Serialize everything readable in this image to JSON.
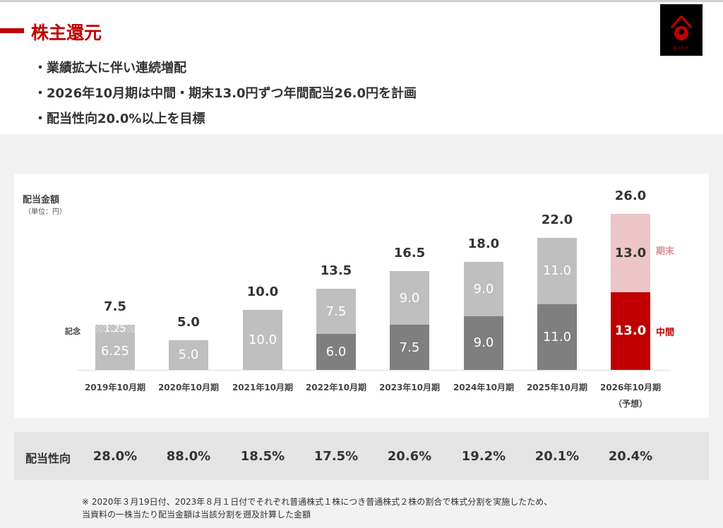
{
  "header": {
    "title": "株主還元",
    "logo_text": "GIFT"
  },
  "bullets": [
    "業績拡大に伴い連続増配",
    "2026年10月期は中間・期末13.0円ずつ年間配当26.0円を計画",
    "配当性向20.0%以上を目標"
  ],
  "chart_data": {
    "type": "bar",
    "title": "配当金額",
    "unit": "（単位：円）",
    "categories": [
      "2019年10月期",
      "2020年10月期",
      "2021年10月期",
      "2022年10月期",
      "2023年10月期",
      "2024年10月期",
      "2025年10月期",
      "2026年10月期"
    ],
    "forecast_note": "（予想）",
    "totals": [
      "7.5",
      "5.0",
      "10.0",
      "13.5",
      "16.5",
      "18.0",
      "22.0",
      "26.0"
    ],
    "segments": [
      [
        {
          "v": 6.25,
          "label": "6.25",
          "kind": "annual"
        },
        {
          "v": 1.25,
          "label": "1.25",
          "kind": "commemorative"
        }
      ],
      [
        {
          "v": 5.0,
          "label": "5.0",
          "kind": "annual"
        }
      ],
      [
        {
          "v": 10.0,
          "label": "10.0",
          "kind": "annual"
        }
      ],
      [
        {
          "v": 6.0,
          "label": "6.0",
          "kind": "interim"
        },
        {
          "v": 7.5,
          "label": "7.5",
          "kind": "final"
        }
      ],
      [
        {
          "v": 7.5,
          "label": "7.5",
          "kind": "interim"
        },
        {
          "v": 9.0,
          "label": "9.0",
          "kind": "final"
        }
      ],
      [
        {
          "v": 9.0,
          "label": "9.0",
          "kind": "interim"
        },
        {
          "v": 9.0,
          "label": "9.0",
          "kind": "final"
        }
      ],
      [
        {
          "v": 11.0,
          "label": "11.0",
          "kind": "interim"
        },
        {
          "v": 11.0,
          "label": "11.0",
          "kind": "final"
        }
      ],
      [
        {
          "v": 13.0,
          "label": "13.0",
          "kind": "forecast_interim"
        },
        {
          "v": 13.0,
          "label": "13.0",
          "kind": "forecast_final"
        }
      ]
    ],
    "side_labels": {
      "commemorative": "記念",
      "final": "期末",
      "interim": "中間"
    },
    "colors": {
      "annual": "#bfbfbf",
      "commemorative": "#bfbfbf",
      "interim": "#7f7f7f",
      "final": "#bfbfbf",
      "forecast_interim": "#c00000",
      "forecast_final": "#ecc5c8"
    },
    "ylim": [
      0,
      26
    ]
  },
  "payout": {
    "label": "配当性向",
    "values": [
      "28.0%",
      "88.0%",
      "18.5%",
      "17.5%",
      "20.6%",
      "19.2%",
      "20.1%",
      "20.4%"
    ]
  },
  "note": [
    "※ 2020年３月19日付、2023年８月１日付でそれぞれ普通株式１株につき普通株式２株の割合で株式分割を実施したため、",
    "当資料の一株当たり配当金額は当該分割を遡及計算した金額"
  ]
}
